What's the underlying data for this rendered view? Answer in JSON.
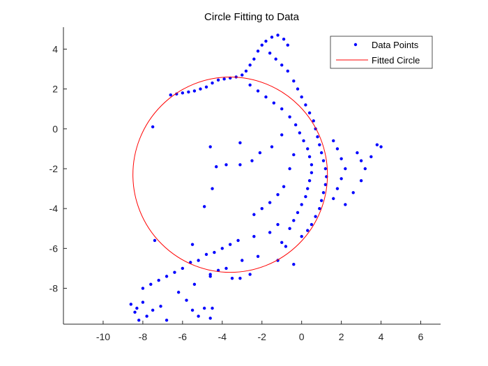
{
  "chart_data": {
    "type": "scatter",
    "title": "Circle Fitting to Data",
    "xlabel": "",
    "ylabel": "",
    "xlim": [
      -12,
      7
    ],
    "ylim": [
      -9.8,
      5.1
    ],
    "xticks": [
      -10,
      -8,
      -6,
      -4,
      -2,
      0,
      2,
      4,
      6
    ],
    "yticks": [
      -8,
      -6,
      -4,
      -2,
      0,
      2,
      4
    ],
    "grid": false,
    "legend_position": "top-right",
    "legend": [
      "Data Points",
      "Fitted Circle"
    ],
    "series": [
      {
        "name": "Data Points",
        "kind": "points",
        "color": "#0000ff",
        "points": [
          [
            -6.6,
            1.7
          ],
          [
            -6.3,
            1.75
          ],
          [
            -6.0,
            1.8
          ],
          [
            -5.7,
            1.85
          ],
          [
            -5.4,
            1.9
          ],
          [
            -5.1,
            2.0
          ],
          [
            -4.8,
            2.1
          ],
          [
            -4.5,
            2.3
          ],
          [
            -4.2,
            2.45
          ],
          [
            -3.9,
            2.5
          ],
          [
            -3.6,
            2.55
          ],
          [
            -3.3,
            2.6
          ],
          [
            -3.0,
            2.7
          ],
          [
            -2.8,
            2.9
          ],
          [
            -2.6,
            3.2
          ],
          [
            -2.4,
            3.5
          ],
          [
            -2.2,
            3.9
          ],
          [
            -2.0,
            4.2
          ],
          [
            -1.8,
            4.4
          ],
          [
            -1.5,
            4.6
          ],
          [
            -1.2,
            4.7
          ],
          [
            -0.9,
            4.5
          ],
          [
            -0.7,
            4.2
          ],
          [
            -1.6,
            3.8
          ],
          [
            -1.3,
            3.5
          ],
          [
            -1.0,
            3.2
          ],
          [
            -0.7,
            2.9
          ],
          [
            -0.4,
            2.4
          ],
          [
            -0.2,
            2.0
          ],
          [
            0.0,
            1.6
          ],
          [
            0.2,
            1.2
          ],
          [
            0.4,
            0.8
          ],
          [
            0.6,
            0.4
          ],
          [
            0.7,
            0.0
          ],
          [
            0.8,
            -0.4
          ],
          [
            0.9,
            -0.8
          ],
          [
            1.0,
            -1.2
          ],
          [
            1.1,
            -1.6
          ],
          [
            1.2,
            -2.0
          ],
          [
            1.25,
            -2.4
          ],
          [
            1.2,
            -2.8
          ],
          [
            1.1,
            -3.2
          ],
          [
            1.0,
            -3.6
          ],
          [
            0.9,
            -4.0
          ],
          [
            0.7,
            -4.4
          ],
          [
            0.5,
            -4.8
          ],
          [
            0.3,
            -5.1
          ],
          [
            0.0,
            -5.4
          ],
          [
            -2.6,
            2.2
          ],
          [
            -2.2,
            1.9
          ],
          [
            -1.8,
            1.6
          ],
          [
            -1.4,
            1.3
          ],
          [
            -1.0,
            1.0
          ],
          [
            -0.6,
            0.6
          ],
          [
            -0.3,
            0.2
          ],
          [
            -0.1,
            -0.2
          ],
          [
            0.1,
            -0.6
          ],
          [
            0.3,
            -1.0
          ],
          [
            0.4,
            -1.4
          ],
          [
            0.5,
            -1.8
          ],
          [
            0.5,
            -2.2
          ],
          [
            0.4,
            -2.6
          ],
          [
            0.3,
            -3.0
          ],
          [
            0.2,
            -3.4
          ],
          [
            0.0,
            -3.8
          ],
          [
            -0.2,
            -4.2
          ],
          [
            -0.4,
            -4.6
          ],
          [
            -0.6,
            -5.0
          ],
          [
            1.6,
            -0.6
          ],
          [
            1.8,
            -1.0
          ],
          [
            2.0,
            -1.5
          ],
          [
            2.2,
            -2.0
          ],
          [
            2.0,
            -2.5
          ],
          [
            1.8,
            -3.0
          ],
          [
            1.6,
            -3.5
          ],
          [
            2.8,
            -1.2
          ],
          [
            3.0,
            -1.6
          ],
          [
            3.2,
            -2.0
          ],
          [
            3.5,
            -1.4
          ],
          [
            3.8,
            -0.8
          ],
          [
            4.0,
            -0.9
          ],
          [
            3.0,
            -2.6
          ],
          [
            2.6,
            -3.2
          ],
          [
            2.2,
            -3.8
          ],
          [
            -7.5,
            0.1
          ],
          [
            -3.1,
            -0.7
          ],
          [
            -4.6,
            -0.9
          ],
          [
            -4.3,
            -1.9
          ],
          [
            -3.8,
            -1.8
          ],
          [
            -3.1,
            -1.8
          ],
          [
            -2.5,
            -1.6
          ],
          [
            -2.1,
            -1.2
          ],
          [
            -1.5,
            -0.9
          ],
          [
            -1.0,
            -0.3
          ],
          [
            -0.6,
            -2.0
          ],
          [
            -0.4,
            -1.3
          ],
          [
            -0.9,
            -2.9
          ],
          [
            -1.2,
            -3.3
          ],
          [
            -1.6,
            -3.7
          ],
          [
            -2.0,
            -4.0
          ],
          [
            -2.4,
            -4.3
          ],
          [
            -4.9,
            -3.9
          ],
          [
            -1.2,
            -4.8
          ],
          [
            -1.0,
            -5.7
          ],
          [
            -0.8,
            -5.9
          ],
          [
            -1.6,
            -5.2
          ],
          [
            -2.4,
            -5.4
          ],
          [
            -3.2,
            -5.6
          ],
          [
            -4.0,
            -6.0
          ],
          [
            -4.8,
            -6.3
          ],
          [
            -5.6,
            -6.7
          ],
          [
            -6.4,
            -7.2
          ],
          [
            -7.2,
            -7.6
          ],
          [
            -8.0,
            -8.0
          ],
          [
            -3.6,
            -5.8
          ],
          [
            -4.4,
            -6.2
          ],
          [
            -5.2,
            -6.6
          ],
          [
            -6.0,
            -7.0
          ],
          [
            -6.8,
            -7.4
          ],
          [
            -7.6,
            -7.8
          ],
          [
            -3.0,
            -6.6
          ],
          [
            -3.8,
            -7.0
          ],
          [
            -4.6,
            -7.4
          ],
          [
            -5.4,
            -7.8
          ],
          [
            -6.2,
            -8.2
          ],
          [
            -4.2,
            -7.1
          ],
          [
            -4.6,
            -7.3
          ],
          [
            -3.5,
            -7.5
          ],
          [
            -2.2,
            -6.4
          ],
          [
            -1.2,
            -6.6
          ],
          [
            -0.4,
            -6.8
          ],
          [
            -2.6,
            -7.3
          ],
          [
            -3.1,
            -7.5
          ],
          [
            -8.6,
            -8.8
          ],
          [
            -8.3,
            -9.0
          ],
          [
            -8.0,
            -8.7
          ],
          [
            -8.4,
            -9.2
          ],
          [
            -8.2,
            -9.6
          ],
          [
            -7.8,
            -9.4
          ],
          [
            -7.5,
            -9.1
          ],
          [
            -7.1,
            -8.9
          ],
          [
            -6.8,
            -9.6
          ],
          [
            -5.8,
            -8.6
          ],
          [
            -5.5,
            -9.1
          ],
          [
            -5.2,
            -9.4
          ],
          [
            -4.9,
            -9.0
          ],
          [
            -4.6,
            -9.5
          ],
          [
            -4.5,
            -9.0
          ],
          [
            -7.4,
            -5.6
          ],
          [
            -5.5,
            -5.8
          ],
          [
            -4.5,
            -3.0
          ]
        ]
      },
      {
        "name": "Fitted Circle",
        "kind": "circle",
        "color": "#ff0000",
        "center": [
          -3.6,
          -2.3
        ],
        "radius": 4.9
      }
    ]
  }
}
